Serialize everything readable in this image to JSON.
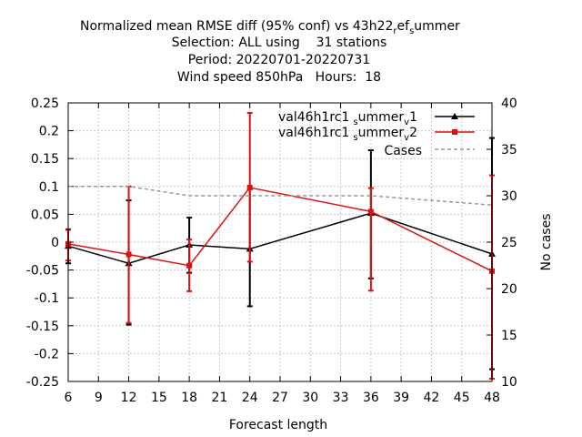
{
  "chart_data": {
    "type": "line",
    "title_lines": [
      "Normalized mean RMSE diff (95% conf) vs 43h22",
      "Selection: ALL using    31 stations",
      "Period: 20220701-20220731",
      "Wind speed 850hPa   Hours:  18"
    ],
    "title_suffix": {
      "sub1": "r",
      "mid1": "ef",
      "sub2": "s",
      "end": "ummer"
    },
    "xlabel": "Forecast length",
    "ylabel": "",
    "y2label": "No cases",
    "xlim": [
      6,
      48
    ],
    "ylim": [
      -0.25,
      0.25
    ],
    "y2lim": [
      10,
      40
    ],
    "xticks": [
      "6",
      "9",
      "12",
      "15",
      "18",
      "21",
      "24",
      "27",
      "30",
      "33",
      "36",
      "39",
      "42",
      "45",
      "48"
    ],
    "yticks": [
      "0.25",
      "0.2",
      "0.15",
      "0.1",
      "0.05",
      "0",
      "-0.05",
      "-0.1",
      "-0.15",
      "-0.2",
      "-0.25"
    ],
    "y2ticks": [
      "40",
      "35",
      "30",
      "25",
      "20",
      "15",
      "10"
    ],
    "grid": true,
    "legend_position": "top-right",
    "series": [
      {
        "name": "val46h1rc1_summer_v1",
        "legend_parts": {
          "main": "val46h1rc1",
          "s1": "s",
          "m1": "ummer",
          "s2": "v",
          "end": "1"
        },
        "color": "#000000",
        "marker": "triangle",
        "x": [
          6,
          12,
          18,
          24,
          36,
          48
        ],
        "y": [
          -0.007,
          -0.038,
          -0.005,
          -0.012,
          0.052,
          -0.021
        ],
        "err_low": [
          -0.038,
          -0.148,
          -0.055,
          -0.115,
          -0.065,
          -0.228
        ],
        "err_high": [
          0.023,
          0.075,
          0.044,
          0.095,
          0.165,
          0.187
        ]
      },
      {
        "name": "val46h1rc1_summer_v2",
        "legend_parts": {
          "main": "val46h1rc1",
          "s1": "s",
          "m1": "ummer",
          "s2": "v",
          "end": "2"
        },
        "color": "#dd1111",
        "marker": "square",
        "x": [
          6,
          12,
          18,
          24,
          36,
          48
        ],
        "y": [
          -0.003,
          -0.022,
          -0.042,
          0.098,
          0.055,
          -0.052
        ],
        "err_low": [
          -0.033,
          -0.145,
          -0.088,
          -0.035,
          -0.087,
          -0.245
        ],
        "err_high": [
          0.022,
          0.1,
          0.005,
          0.232,
          0.097,
          0.12
        ]
      },
      {
        "name": "Cases",
        "color": "#999999",
        "dashed": true,
        "axis": "y2",
        "x": [
          6,
          12,
          18,
          24,
          36,
          48
        ],
        "y": [
          31,
          31,
          30,
          30,
          30,
          29
        ]
      }
    ]
  }
}
